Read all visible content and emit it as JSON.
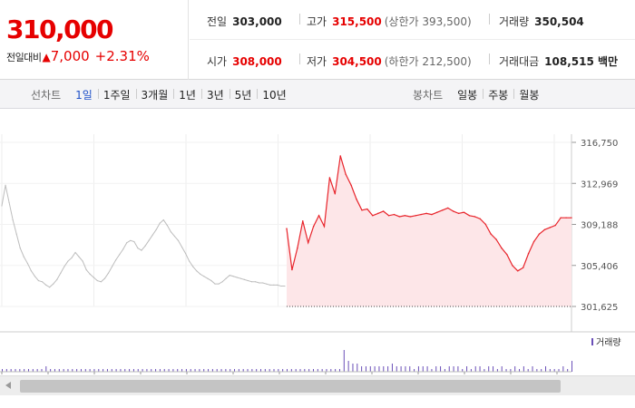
{
  "price": {
    "current": "310,000",
    "change_label": "전일대비",
    "change_symbol": "▲",
    "change": "7,000",
    "change_pct": "+2.31%"
  },
  "stats": {
    "prev_close": {
      "label": "전일",
      "value": "303,000"
    },
    "high": {
      "label": "고가",
      "value": "315,500",
      "limit": "(상한가 393,500)"
    },
    "volume": {
      "label": "거래량",
      "value": "350,504"
    },
    "open": {
      "label": "시가",
      "value": "308,000"
    },
    "low": {
      "label": "저가",
      "value": "304,500",
      "limit": "(하한가 212,500)"
    },
    "amount": {
      "label": "거래대금",
      "value": "108,515 백만"
    }
  },
  "tabs": {
    "line_title": "선차트",
    "line": [
      "1일",
      "1주일",
      "3개월",
      "1년",
      "3년",
      "5년",
      "10년"
    ],
    "line_active": 0,
    "candle_title": "봉차트",
    "candle": [
      "일봉",
      "주봉",
      "월봉"
    ]
  },
  "chart_data": {
    "type": "line",
    "y_ticks": [
      "316,750",
      "312,969",
      "309,188",
      "305,406",
      "301,625"
    ],
    "ylim": [
      301625,
      316750
    ],
    "volume_label": "거래량",
    "colors": {
      "today": "#e8242b",
      "fill": "#fde6e8",
      "previous": "#bdbdbd",
      "volume": "#6a4fb8"
    },
    "series": [
      {
        "values": [
          310900,
          312800,
          311200,
          309600,
          308300,
          307000,
          306200,
          305600,
          304900,
          304400,
          304000,
          303900,
          303600,
          303400,
          303700,
          304100,
          304700,
          305300,
          305800,
          306100,
          306600,
          306200,
          305800,
          305000,
          304600,
          304300,
          304000,
          303900,
          304200,
          304700,
          305300,
          305900,
          306400,
          306900,
          307500,
          307700,
          307600,
          307000,
          306800,
          307200,
          307700,
          308200,
          308700,
          309300,
          309600,
          309100,
          308500,
          308100,
          307700,
          307100,
          306500,
          305800,
          305300,
          304900,
          304600,
          304400,
          304200,
          304000,
          303700,
          303700,
          303900,
          304200,
          304500,
          304400,
          304300,
          304200,
          304100,
          304000,
          303900,
          303900,
          303800,
          303800,
          303700,
          303600,
          303600,
          303600,
          303500,
          303500
        ]
      },
      {
        "values": [
          308800,
          305000,
          307000,
          309500,
          307500,
          309000,
          310000,
          309000,
          313500,
          312000,
          315500,
          313800,
          312800,
          311500,
          310500,
          310600,
          310000,
          310200,
          310400,
          310000,
          310100,
          309900,
          310000,
          309900,
          310000,
          310100,
          310200,
          310100,
          310300,
          310500,
          310700,
          310400,
          310200,
          310300,
          310000,
          309900,
          309700,
          309200,
          308300,
          307800,
          307000,
          306400,
          305400,
          304900,
          305200,
          306500,
          307600,
          308300,
          308700,
          308900,
          309100,
          309800,
          309800,
          309800
        ]
      }
    ],
    "volume": [
      1,
      1,
      1,
      1,
      1,
      1,
      1,
      1,
      1,
      1,
      2,
      1,
      1,
      1,
      1,
      1,
      1,
      1,
      1,
      1,
      1,
      1,
      1,
      1,
      1,
      1,
      1,
      1,
      1,
      1,
      1,
      1,
      1,
      1,
      1,
      1,
      1,
      1,
      1,
      1,
      1,
      1,
      1,
      1,
      1,
      1,
      1,
      1,
      1,
      1,
      1,
      1,
      1,
      1,
      1,
      1,
      1,
      1,
      1,
      1,
      1,
      1,
      1,
      1,
      1,
      1,
      1,
      1,
      1,
      1,
      1,
      1,
      1,
      1,
      1,
      1,
      1,
      1,
      8,
      4,
      3,
      3,
      2,
      2,
      2,
      2,
      2,
      2,
      2,
      3,
      2,
      2,
      2,
      2,
      1,
      2,
      2,
      2,
      1,
      2,
      2,
      1,
      2,
      2,
      2,
      1,
      2,
      1,
      2,
      2,
      1,
      2,
      2,
      1,
      2,
      1,
      1,
      2,
      1,
      2,
      1,
      2,
      1,
      1,
      2,
      1,
      1,
      1,
      2,
      1,
      4
    ]
  }
}
